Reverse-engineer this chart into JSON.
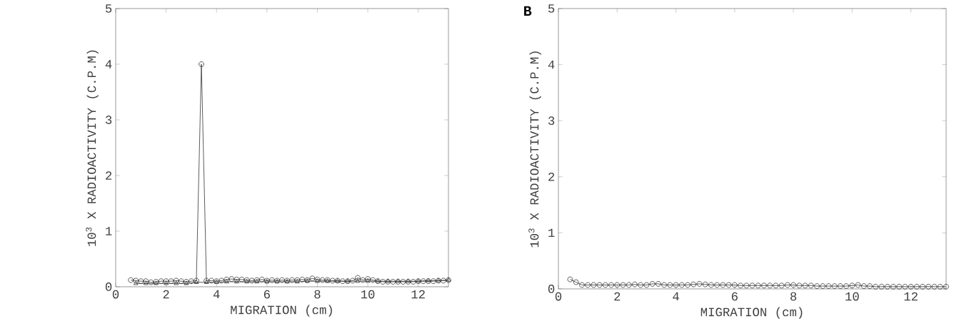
{
  "chart_data": [
    {
      "type": "line",
      "xlabel": "MIGRATION (cm)",
      "ylabel": "10$^{3}$ X RADIOACTIVITY (C.P.M)",
      "xlim": [
        0,
        13.2
      ],
      "ylim": [
        0,
        5
      ],
      "xticks": [
        0,
        2,
        4,
        6,
        8,
        10,
        12
      ],
      "yticks": [
        0,
        1,
        2,
        3,
        4,
        5
      ],
      "grid": false,
      "marker": "circle",
      "series": [
        {
          "color": "#333333",
          "marker": "circle",
          "x": [
            0.6,
            0.8,
            1.0,
            1.2,
            1.4,
            1.6,
            1.8,
            2.0,
            2.2,
            2.4,
            2.6,
            2.8,
            3.0,
            3.2,
            3.4,
            3.6,
            3.8,
            4.0,
            4.2,
            4.4,
            4.6,
            4.8,
            5.0,
            5.2,
            5.4,
            5.6,
            5.8,
            6.0,
            6.2,
            6.4,
            6.6,
            6.8,
            7.0,
            7.2,
            7.4,
            7.6,
            7.8,
            8.0,
            8.2,
            8.4,
            8.6,
            8.8,
            9.0,
            9.2,
            9.4,
            9.6,
            9.8,
            10.0,
            10.2,
            10.4,
            10.6,
            10.8,
            11.0,
            11.2,
            11.4,
            11.6,
            11.8,
            12.0,
            12.2,
            12.4,
            12.6,
            12.8,
            13.0,
            13.2
          ],
          "values": [
            0.12,
            0.11,
            0.1,
            0.1,
            0.08,
            0.09,
            0.1,
            0.1,
            0.1,
            0.11,
            0.1,
            0.09,
            0.1,
            0.11,
            4.0,
            0.11,
            0.11,
            0.1,
            0.11,
            0.13,
            0.14,
            0.13,
            0.13,
            0.12,
            0.11,
            0.12,
            0.13,
            0.11,
            0.12,
            0.11,
            0.12,
            0.11,
            0.12,
            0.12,
            0.13,
            0.12,
            0.15,
            0.13,
            0.12,
            0.12,
            0.11,
            0.11,
            0.1,
            0.1,
            0.11,
            0.16,
            0.12,
            0.14,
            0.12,
            0.1,
            0.09,
            0.09,
            0.09,
            0.09,
            0.09,
            0.09,
            0.09,
            0.1,
            0.1,
            0.1,
            0.1,
            0.11,
            0.11,
            0.12
          ]
        },
        {
          "color": "#333333",
          "marker": "triangle",
          "x": [
            0.8,
            1.2,
            1.6,
            2.0,
            2.4,
            2.8,
            3.2,
            3.6,
            4.0,
            4.4,
            4.8,
            5.2,
            5.6,
            6.0,
            6.4,
            6.8,
            7.2,
            7.6,
            8.0,
            8.4,
            8.8,
            9.2,
            9.6,
            10.0,
            10.4,
            10.8,
            11.2,
            11.6,
            12.0,
            12.4,
            12.8,
            13.2
          ],
          "values": [
            0.06,
            0.06,
            0.06,
            0.06,
            0.06,
            0.06,
            0.08,
            0.08,
            0.08,
            0.09,
            0.09,
            0.09,
            0.09,
            0.09,
            0.09,
            0.09,
            0.09,
            0.1,
            0.1,
            0.1,
            0.1,
            0.1,
            0.1,
            0.1,
            0.1,
            0.1,
            0.1,
            0.1,
            0.1,
            0.11,
            0.11,
            0.12
          ]
        }
      ]
    },
    {
      "type": "line",
      "title": "B",
      "xlabel": "MIGRATION (cm)",
      "ylabel": "10$^{3}$ X RADIOACTIVITY (C.P.M)",
      "xlim": [
        0,
        13.2
      ],
      "ylim": [
        0,
        5
      ],
      "xticks": [
        0,
        2,
        4,
        6,
        8,
        10,
        12
      ],
      "yticks": [
        0,
        1,
        2,
        3,
        4,
        5
      ],
      "grid": false,
      "marker": "circle",
      "series": [
        {
          "color": "#333333",
          "x": [
            0.4,
            0.6,
            0.8,
            1.0,
            1.2,
            1.4,
            1.6,
            1.8,
            2.0,
            2.2,
            2.4,
            2.6,
            2.8,
            3.0,
            3.2,
            3.4,
            3.6,
            3.8,
            4.0,
            4.2,
            4.4,
            4.6,
            4.8,
            5.0,
            5.2,
            5.4,
            5.6,
            5.8,
            6.0,
            6.2,
            6.4,
            6.6,
            6.8,
            7.0,
            7.2,
            7.4,
            7.6,
            7.8,
            8.0,
            8.2,
            8.4,
            8.6,
            8.8,
            9.0,
            9.2,
            9.4,
            9.6,
            9.8,
            10.0,
            10.2,
            10.4,
            10.6,
            10.8,
            11.0,
            11.2,
            11.4,
            11.6,
            11.8,
            12.0,
            12.2,
            12.4,
            12.6,
            12.8,
            13.0,
            13.2
          ],
          "values": [
            0.17,
            0.12,
            0.07,
            0.07,
            0.07,
            0.07,
            0.07,
            0.07,
            0.07,
            0.07,
            0.07,
            0.08,
            0.07,
            0.07,
            0.09,
            0.09,
            0.07,
            0.07,
            0.07,
            0.07,
            0.07,
            0.08,
            0.09,
            0.08,
            0.07,
            0.07,
            0.07,
            0.07,
            0.07,
            0.06,
            0.06,
            0.06,
            0.06,
            0.06,
            0.06,
            0.06,
            0.06,
            0.07,
            0.07,
            0.06,
            0.06,
            0.06,
            0.05,
            0.05,
            0.05,
            0.05,
            0.05,
            0.05,
            0.06,
            0.07,
            0.05,
            0.05,
            0.04,
            0.04,
            0.04,
            0.04,
            0.04,
            0.04,
            0.04,
            0.04,
            0.04,
            0.04,
            0.04,
            0.04,
            0.04
          ]
        }
      ]
    }
  ]
}
